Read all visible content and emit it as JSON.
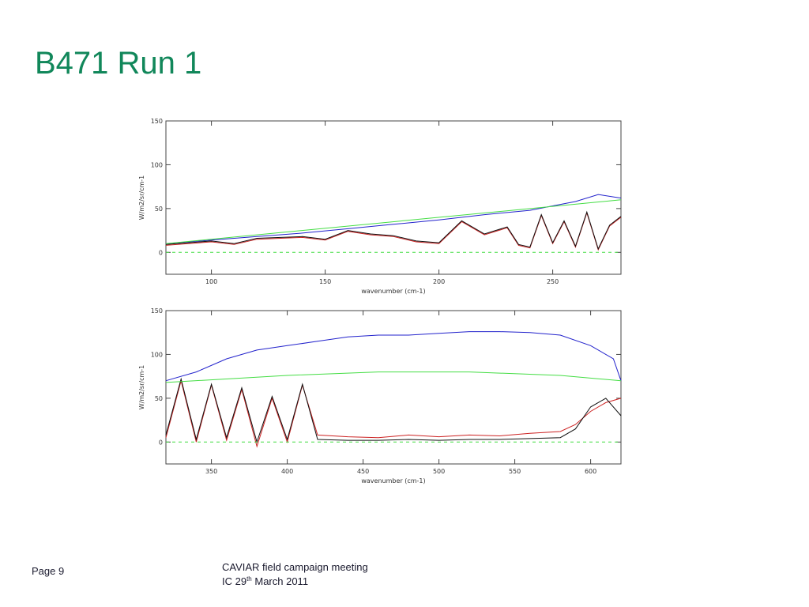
{
  "slide": {
    "title": "B471 Run 1",
    "title_color": "#11875a",
    "page_label": "Page 9",
    "footer_line1": "CAVIAR field campaign meeting",
    "footer_line2_prefix": "IC 29",
    "footer_line2_sup": "th",
    "footer_line2_suffix": " March 2011"
  },
  "chart_data": [
    {
      "type": "line",
      "title": "",
      "xlabel": "wavenumber (cm-1)",
      "ylabel": "W/m2/sr/cm-1",
      "xlim": [
        80,
        280
      ],
      "ylim": [
        -25,
        150
      ],
      "xticks": [
        100,
        150,
        200,
        250
      ],
      "yticks": [
        0,
        50,
        100,
        150
      ],
      "grid": false,
      "series": [
        {
          "color": "#2222cc",
          "x": [
            80,
            100,
            120,
            140,
            160,
            180,
            200,
            220,
            240,
            250,
            260,
            270,
            280
          ],
          "y": [
            10,
            14,
            18,
            22,
            27,
            32,
            37,
            43,
            48,
            53,
            58,
            66,
            62
          ]
        },
        {
          "color": "#cc2222",
          "x": [
            80,
            100,
            110,
            120,
            140,
            150,
            160,
            170,
            180,
            190,
            200,
            210,
            220,
            230,
            235,
            240,
            245,
            250,
            255,
            260,
            265,
            270,
            275,
            280
          ],
          "y": [
            8,
            12,
            9,
            15,
            17,
            14,
            24,
            20,
            18,
            12,
            10,
            35,
            20,
            28,
            8,
            5,
            42,
            10,
            35,
            6,
            45,
            3,
            30,
            40
          ]
        },
        {
          "color": "#111111",
          "x": [
            80,
            100,
            110,
            120,
            140,
            150,
            160,
            170,
            180,
            190,
            200,
            210,
            220,
            230,
            235,
            240,
            245,
            250,
            255,
            260,
            265,
            270,
            275,
            280
          ],
          "y": [
            9,
            13,
            10,
            16,
            18,
            15,
            25,
            21,
            19,
            13,
            11,
            36,
            21,
            29,
            9,
            6,
            43,
            11,
            36,
            7,
            46,
            4,
            31,
            41
          ]
        },
        {
          "color": "#44dd44",
          "x": [
            80,
            280
          ],
          "y": [
            10,
            60
          ]
        },
        {
          "color": "#44dd44",
          "dashed": true,
          "x": [
            80,
            280
          ],
          "y": [
            0,
            0
          ]
        }
      ]
    },
    {
      "type": "line",
      "title": "",
      "xlabel": "wavenumber (cm-1)",
      "ylabel": "W/m2/sr/cm-1",
      "xlim": [
        320,
        620
      ],
      "ylim": [
        -25,
        150
      ],
      "xticks": [
        350,
        400,
        450,
        500,
        550,
        600
      ],
      "yticks": [
        0,
        50,
        100,
        150
      ],
      "grid": false,
      "series": [
        {
          "color": "#2222cc",
          "x": [
            320,
            340,
            360,
            380,
            400,
            420,
            440,
            460,
            480,
            500,
            520,
            540,
            560,
            580,
            600,
            615,
            620
          ],
          "y": [
            70,
            80,
            95,
            105,
            110,
            115,
            120,
            122,
            122,
            124,
            126,
            126,
            125,
            122,
            110,
            95,
            70
          ]
        },
        {
          "color": "#cc2222",
          "x": [
            320,
            330,
            340,
            350,
            360,
            370,
            380,
            390,
            400,
            410,
            420,
            440,
            460,
            480,
            500,
            520,
            540,
            560,
            580,
            590,
            600,
            610,
            620
          ],
          "y": [
            5,
            70,
            0,
            65,
            2,
            60,
            -5,
            50,
            0,
            65,
            8,
            6,
            5,
            8,
            6,
            8,
            7,
            10,
            12,
            20,
            35,
            45,
            50
          ]
        },
        {
          "color": "#111111",
          "x": [
            320,
            330,
            340,
            350,
            360,
            370,
            380,
            390,
            400,
            410,
            420,
            440,
            460,
            480,
            500,
            520,
            540,
            560,
            580,
            590,
            600,
            610,
            620
          ],
          "y": [
            8,
            72,
            3,
            66,
            5,
            62,
            0,
            52,
            3,
            66,
            3,
            2,
            2,
            3,
            2,
            3,
            3,
            4,
            5,
            15,
            40,
            50,
            30
          ]
        },
        {
          "color": "#44dd44",
          "x": [
            320,
            400,
            460,
            520,
            580,
            620
          ],
          "y": [
            68,
            76,
            80,
            80,
            76,
            70
          ]
        },
        {
          "color": "#44dd44",
          "dashed": true,
          "x": [
            320,
            620
          ],
          "y": [
            0,
            0
          ]
        }
      ]
    }
  ]
}
